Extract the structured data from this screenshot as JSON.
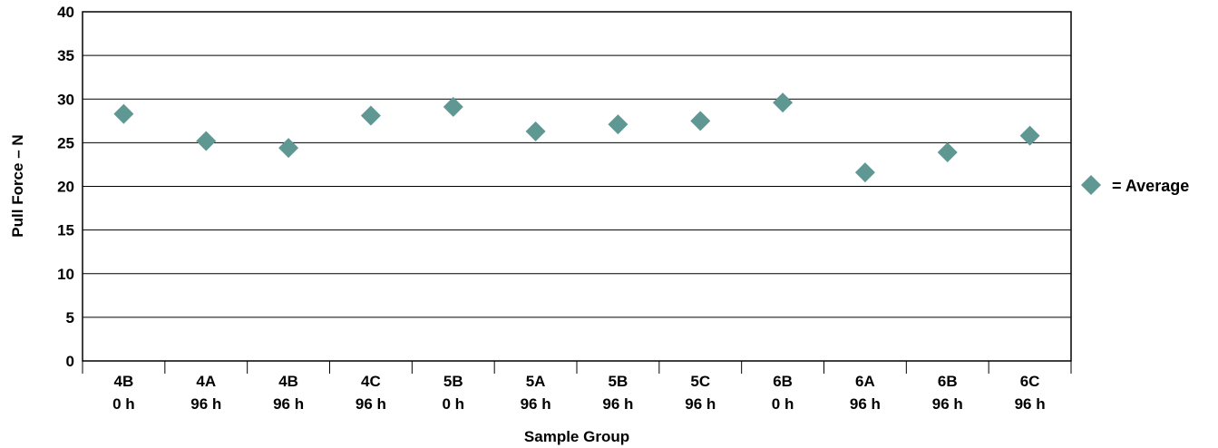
{
  "chart_data": {
    "type": "scatter",
    "title": "",
    "xlabel": "Sample Group",
    "ylabel": "Pull Force – N",
    "ylim": [
      0,
      40
    ],
    "yticks": [
      "0",
      "5",
      "10",
      "15",
      "20",
      "25",
      "30",
      "35",
      "40"
    ],
    "grid": "horizontal",
    "legend_position": "right",
    "marker_color": "#5f9893",
    "categories": [
      {
        "line1": "4B",
        "line2": "0 h"
      },
      {
        "line1": "4A",
        "line2": "96 h"
      },
      {
        "line1": "4B",
        "line2": "96 h"
      },
      {
        "line1": "4C",
        "line2": "96 h"
      },
      {
        "line1": "5B",
        "line2": "0 h"
      },
      {
        "line1": "5A",
        "line2": "96 h"
      },
      {
        "line1": "5B",
        "line2": "96 h"
      },
      {
        "line1": "5C",
        "line2": "96 h"
      },
      {
        "line1": "6B",
        "line2": "0 h"
      },
      {
        "line1": "6A",
        "line2": "96 h"
      },
      {
        "line1": "6B",
        "line2": "96 h"
      },
      {
        "line1": "6C",
        "line2": "96 h"
      }
    ],
    "series": [
      {
        "name": "= Average",
        "values": [
          28.3,
          25.2,
          24.4,
          28.1,
          29.1,
          26.3,
          27.1,
          27.5,
          29.6,
          21.6,
          23.9,
          25.8
        ]
      }
    ]
  }
}
